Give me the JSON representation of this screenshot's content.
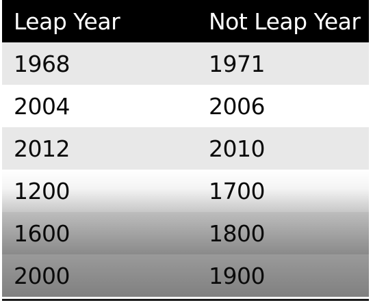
{
  "table": {
    "headers": [
      "Leap Year",
      "Not Leap Year"
    ],
    "rows": [
      [
        "1968",
        "1971"
      ],
      [
        "2004",
        "2006"
      ],
      [
        "2012",
        "2010"
      ],
      [
        "1200",
        "1700"
      ],
      [
        "1600",
        "1800"
      ],
      [
        "2000",
        "1900"
      ]
    ]
  },
  "colors": {
    "header_background": "#000000",
    "header_text": "#ffffff",
    "stripe_light": "#e8e8e8",
    "stripe_white": "#ffffff"
  }
}
